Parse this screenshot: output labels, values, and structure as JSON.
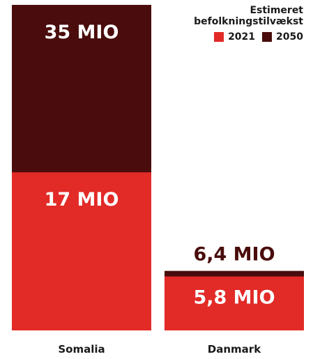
{
  "chart_data": {
    "type": "bar",
    "stacked": "overlay",
    "categories": [
      "Somalia",
      "Danmark"
    ],
    "series": [
      {
        "name": "2021",
        "values": [
          17,
          5.8
        ],
        "labels": [
          "17 MIO",
          "5,8 MIO"
        ],
        "color": "#e22a27"
      },
      {
        "name": "2050",
        "values": [
          35,
          6.4
        ],
        "labels": [
          "35 MIO",
          "6,4 MIO"
        ],
        "color": "#4a0c0c"
      }
    ],
    "legend_title": "Estimeret befolkningstilvækst",
    "legend_position": "top-right",
    "ylim": [
      0,
      35
    ],
    "grid": false
  }
}
